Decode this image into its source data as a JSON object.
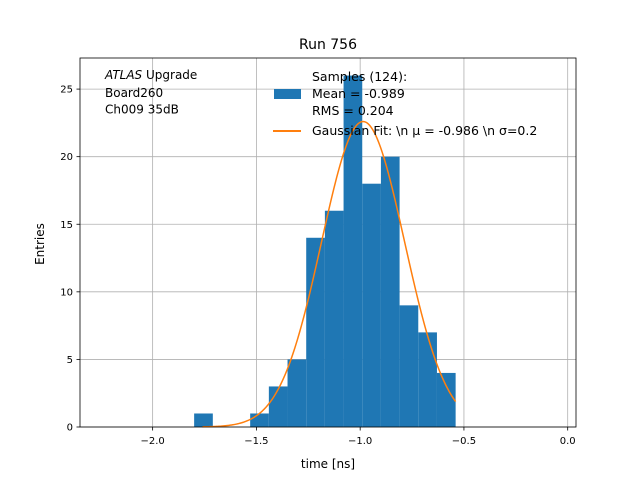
{
  "chart_data": {
    "type": "bar",
    "title": "Run 756",
    "xlabel": "time [ns]",
    "ylabel": "Entries",
    "xlim": [
      -2.35,
      0.04
    ],
    "ylim": [
      0,
      27.3
    ],
    "grid": true,
    "x_ticks": [
      -2.0,
      -1.5,
      -1.0,
      -0.5,
      0.0
    ],
    "x_tick_labels": [
      "−2.0",
      "−1.5",
      "−1.0",
      "−0.5",
      "0.0"
    ],
    "y_ticks": [
      0,
      5,
      10,
      15,
      20,
      25
    ],
    "y_tick_labels": [
      "0",
      "5",
      "10",
      "15",
      "20",
      "25"
    ],
    "histogram": {
      "name": "Samples (124):\n Mean = -0.989\n RMS = 0.204",
      "color": "#1f77b4",
      "bins": [
        {
          "x0": -1.8,
          "x1": -1.71,
          "value": 1
        },
        {
          "x0": -1.53,
          "x1": -1.44,
          "value": 1
        },
        {
          "x0": -1.44,
          "x1": -1.35,
          "value": 3
        },
        {
          "x0": -1.35,
          "x1": -1.26,
          "value": 5
        },
        {
          "x0": -1.26,
          "x1": -1.17,
          "value": 14
        },
        {
          "x0": -1.17,
          "x1": -1.08,
          "value": 16
        },
        {
          "x0": -1.08,
          "x1": -0.99,
          "value": 26
        },
        {
          "x0": -0.99,
          "x1": -0.9,
          "value": 18
        },
        {
          "x0": -0.9,
          "x1": -0.81,
          "value": 20
        },
        {
          "x0": -0.81,
          "x1": -0.72,
          "value": 9
        },
        {
          "x0": -0.72,
          "x1": -0.63,
          "value": 7
        },
        {
          "x0": -0.63,
          "x1": -0.54,
          "value": 4
        }
      ]
    },
    "fit": {
      "name": "Gaussian Fit: \\n μ = -0.986 \\n σ=0.2",
      "color": "#ff7f0e",
      "type": "gaussian",
      "mu": -0.986,
      "sigma": 0.2,
      "amplitude": 22.6,
      "x_range": [
        -1.76,
        -0.54
      ]
    },
    "legend_placement": "top-right",
    "annotation": {
      "italic": "ATLAS",
      "lines": [
        " Upgrade",
        " Board260",
        " Ch009 35dB"
      ]
    }
  }
}
